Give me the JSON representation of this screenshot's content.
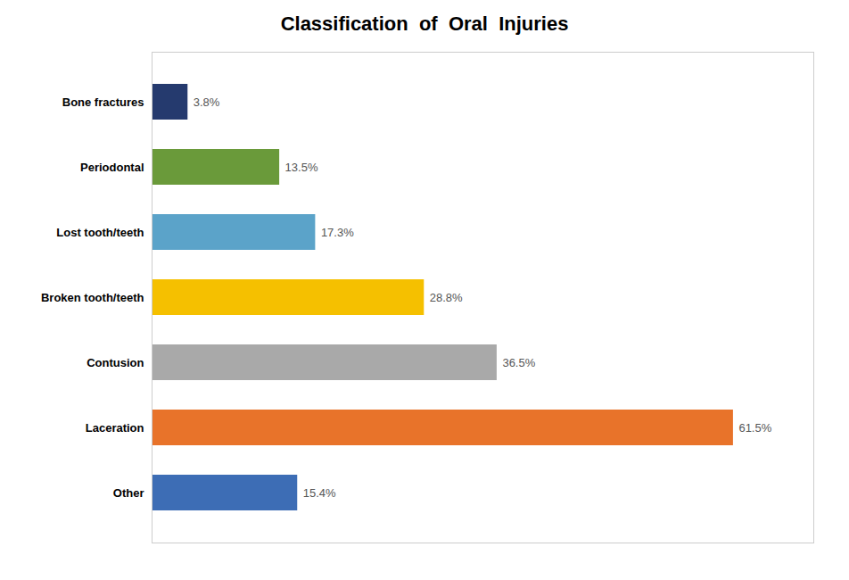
{
  "chart_data": {
    "type": "bar",
    "orientation": "horizontal",
    "title": "Classification  of  Oral  Injuries",
    "categories": [
      "Other",
      "Laceration",
      "Contusion",
      "Broken tooth/teeth",
      "Lost tooth/teeth",
      "Periodontal",
      "Bone fractures"
    ],
    "values": [
      15.4,
      61.5,
      36.5,
      28.8,
      17.3,
      13.5,
      3.8
    ],
    "value_labels": [
      "15.4%",
      "61.5%",
      "36.5%",
      "28.8%",
      "17.3%",
      "13.5%",
      "3.8%"
    ],
    "colors": [
      "#3D6DB5",
      "#E8732A",
      "#A9A9A9",
      "#F5C000",
      "#5BA3C9",
      "#6A9A3A",
      "#253A6E"
    ],
    "xlim": [
      0,
      70
    ],
    "data_labels": true,
    "tick_labels": "y",
    "grid": false
  }
}
